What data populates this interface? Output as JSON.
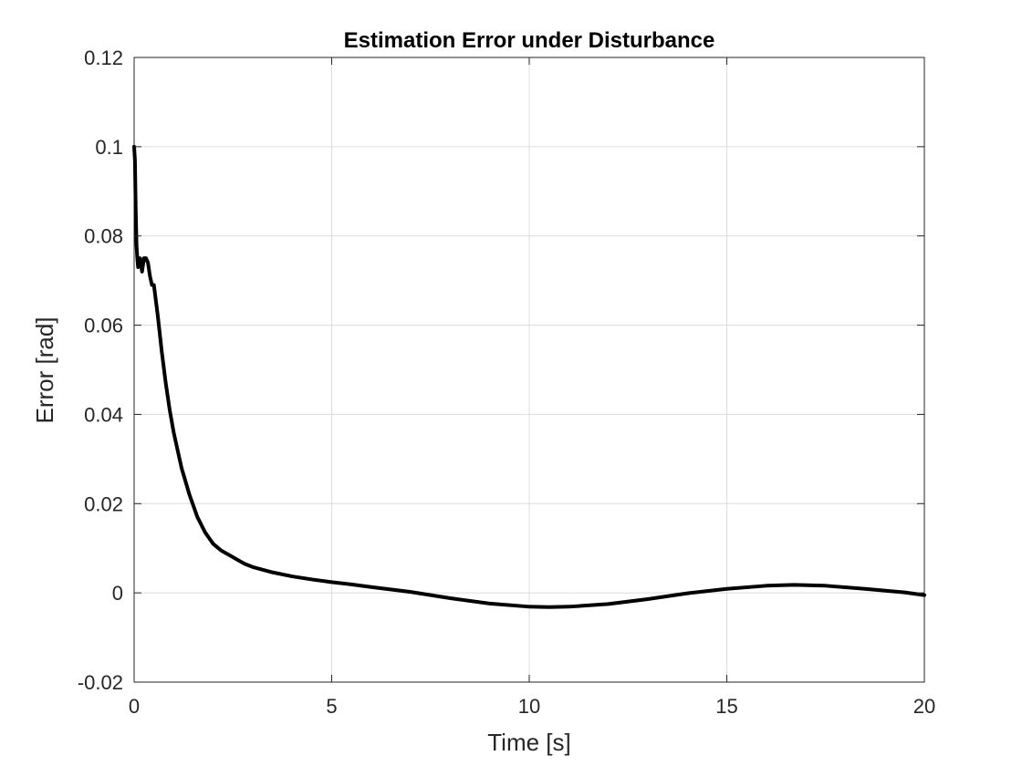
{
  "chart_data": {
    "type": "line",
    "title": "Estimation Error under Disturbance",
    "xlabel": "Time [s]",
    "ylabel": "Error [rad]",
    "xlim": [
      0,
      20
    ],
    "ylim": [
      -0.02,
      0.12
    ],
    "xticks": [
      0,
      5,
      10,
      15,
      20
    ],
    "xtick_labels": [
      "0",
      "5",
      "10",
      "15",
      "20"
    ],
    "yticks": [
      -0.02,
      0,
      0.02,
      0.04,
      0.06,
      0.08,
      0.1,
      0.12
    ],
    "ytick_labels": [
      "-0.02",
      "0",
      "0.02",
      "0.04",
      "0.06",
      "0.08",
      "0.1",
      "0.12"
    ],
    "grid": true,
    "series": [
      {
        "color": "#000000",
        "x": [
          0,
          0.02,
          0.04,
          0.06,
          0.08,
          0.1,
          0.12,
          0.15,
          0.2,
          0.25,
          0.3,
          0.35,
          0.4,
          0.45,
          0.5,
          0.6,
          0.7,
          0.8,
          0.9,
          1.0,
          1.2,
          1.4,
          1.6,
          1.8,
          2.0,
          2.2,
          2.4,
          2.6,
          2.8,
          3.0,
          3.5,
          4.0,
          4.5,
          5.0,
          5.5,
          6.0,
          7.0,
          8.0,
          9.0,
          10.0,
          10.5,
          11.0,
          12.0,
          13.0,
          14.0,
          15.0,
          16.0,
          16.7,
          17.5,
          18.5,
          19.5,
          20.0
        ],
        "y": [
          0.1,
          0.097,
          0.086,
          0.078,
          0.075,
          0.073,
          0.074,
          0.075,
          0.072,
          0.075,
          0.075,
          0.074,
          0.071,
          0.069,
          0.069,
          0.062,
          0.054,
          0.047,
          0.041,
          0.036,
          0.028,
          0.022,
          0.017,
          0.0135,
          0.011,
          0.0095,
          0.0085,
          0.0075,
          0.0065,
          0.0058,
          0.0046,
          0.0037,
          0.003,
          0.0024,
          0.0019,
          0.0013,
          0.0002,
          -0.0012,
          -0.0024,
          -0.0031,
          -0.0032,
          -0.0031,
          -0.0025,
          -0.0014,
          -0.0001,
          0.0009,
          0.0016,
          0.0018,
          0.0016,
          0.0009,
          0.0001,
          -0.0005
        ]
      }
    ]
  }
}
